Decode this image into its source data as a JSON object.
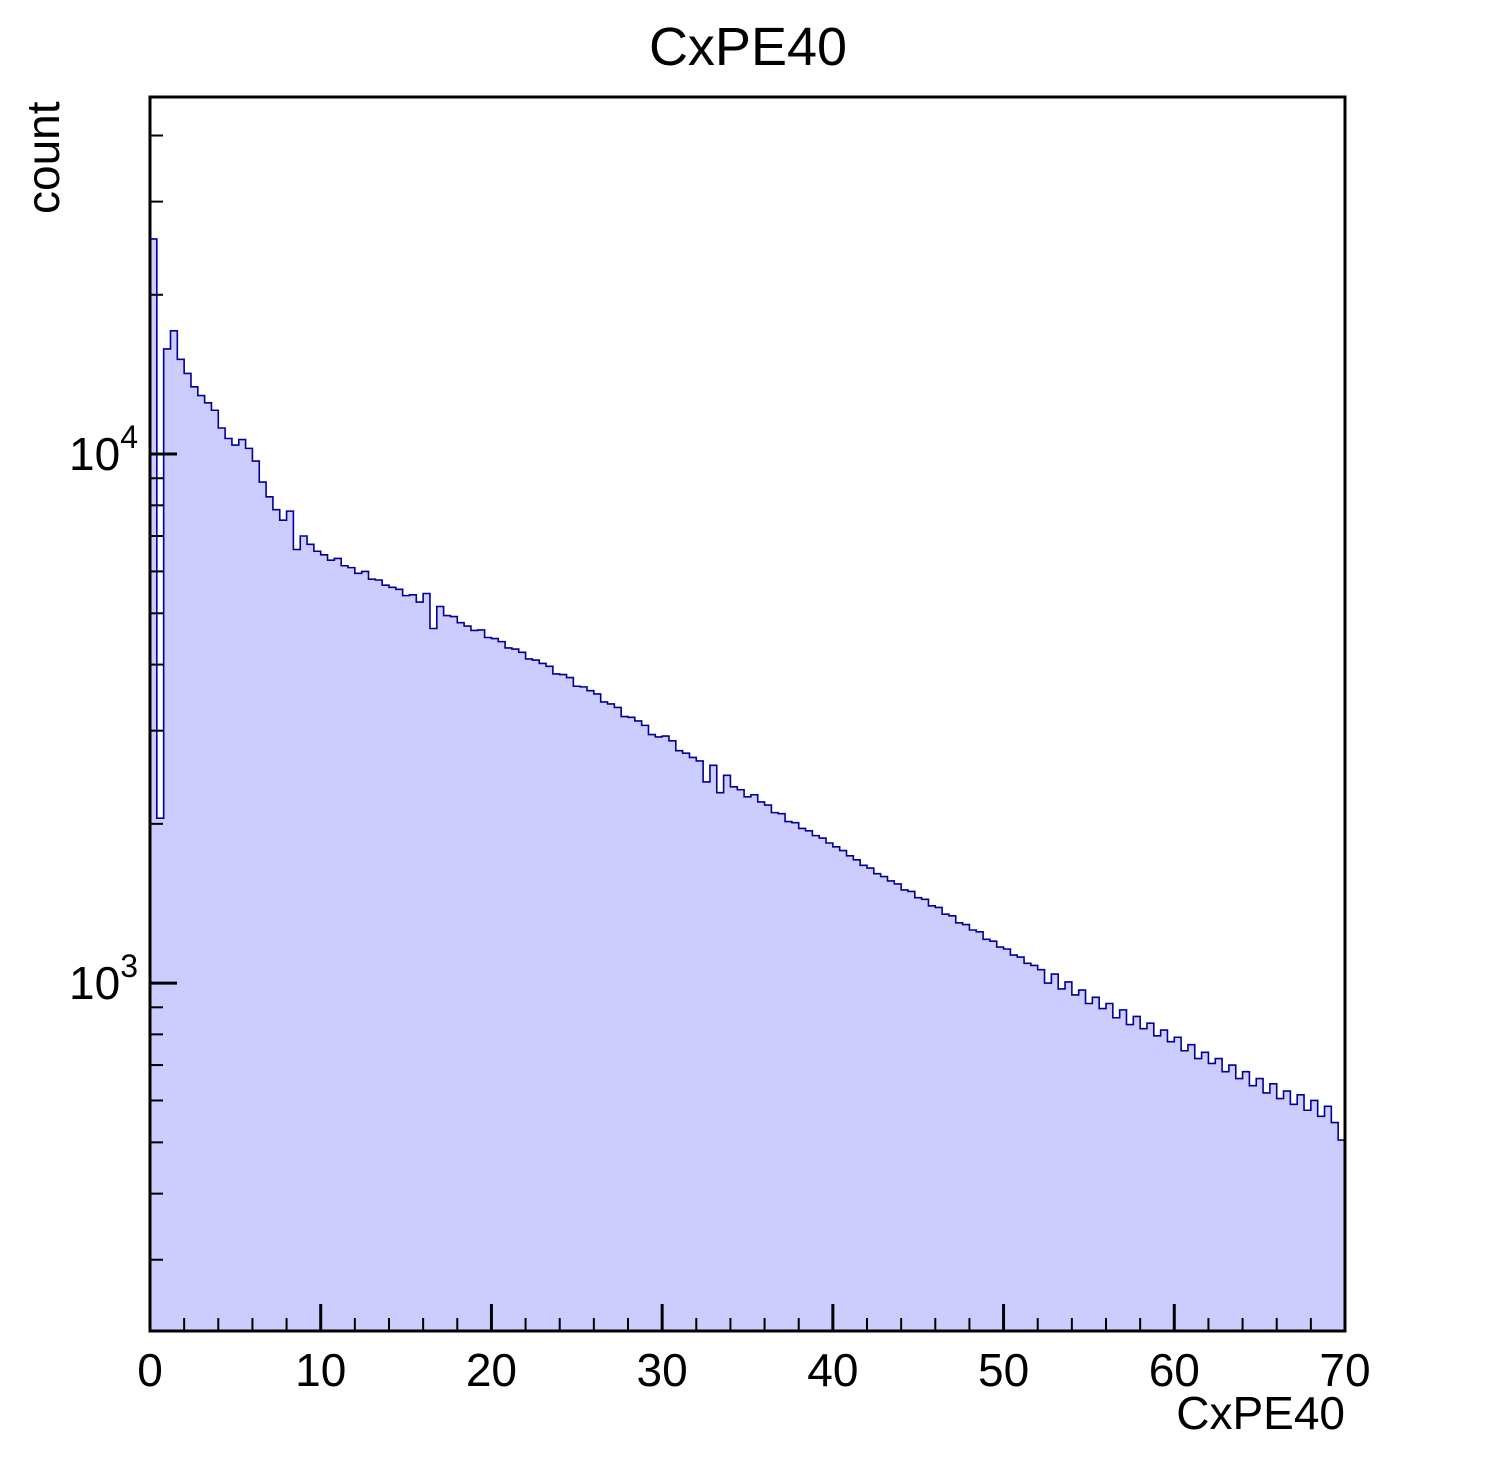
{
  "chart_data": {
    "type": "bar",
    "title": "CxPE40",
    "xlabel": "CxPE40",
    "ylabel": "count",
    "yscale": "log",
    "grid": false,
    "legend": "none",
    "xlim": [
      0,
      70
    ],
    "ylim": [
      220,
      47300
    ],
    "x_start": 0,
    "bin_width": 0.4,
    "x_minor_step": 2,
    "x_ticks": [
      {
        "value": 0,
        "label": "0"
      },
      {
        "value": 10,
        "label": "10"
      },
      {
        "value": 20,
        "label": "20"
      },
      {
        "value": 30,
        "label": "30"
      },
      {
        "value": 40,
        "label": "40"
      },
      {
        "value": 50,
        "label": "50"
      },
      {
        "value": 60,
        "label": "60"
      },
      {
        "value": 70,
        "label": "70"
      }
    ],
    "y_ticks": [
      {
        "value": 1000,
        "base": "10",
        "exp": "3"
      },
      {
        "value": 10000,
        "base": "10",
        "exp": "4"
      }
    ],
    "colors": {
      "fill": "#ccccff",
      "line": "#000099",
      "axis": "#000000",
      "text": "#000000",
      "background": "#ffffff"
    },
    "values": [
      25500,
      2050,
      15800,
      17100,
      15100,
      14200,
      13400,
      12900,
      12500,
      12100,
      11200,
      10700,
      10400,
      10650,
      10250,
      9700,
      8850,
      8300,
      7850,
      7500,
      7800,
      6600,
      7000,
      6750,
      6550,
      6450,
      6300,
      6350,
      6150,
      6100,
      5950,
      6000,
      5800,
      5780,
      5650,
      5600,
      5550,
      5400,
      5420,
      5250,
      5450,
      4680,
      5150,
      4950,
      4930,
      4800,
      4730,
      4640,
      4650,
      4500,
      4480,
      4420,
      4300,
      4280,
      4220,
      4100,
      4080,
      4020,
      3970,
      3840,
      3830,
      3780,
      3640,
      3630,
      3570,
      3520,
      3400,
      3370,
      3320,
      3190,
      3180,
      3130,
      3070,
      2950,
      2920,
      2930,
      2870,
      2750,
      2720,
      2670,
      2630,
      2400,
      2580,
      2290,
      2470,
      2350,
      2320,
      2250,
      2270,
      2200,
      2170,
      2100,
      2090,
      2020,
      2010,
      1960,
      1940,
      1900,
      1880,
      1840,
      1810,
      1780,
      1740,
      1710,
      1670,
      1650,
      1610,
      1590,
      1560,
      1540,
      1500,
      1490,
      1450,
      1440,
      1400,
      1390,
      1350,
      1340,
      1300,
      1290,
      1260,
      1250,
      1210,
      1200,
      1170,
      1160,
      1130,
      1120,
      1090,
      1080,
      1060,
      1000,
      1040,
      975,
      1005,
      950,
      970,
      915,
      940,
      895,
      915,
      860,
      890,
      835,
      865,
      820,
      840,
      795,
      815,
      775,
      790,
      745,
      765,
      720,
      740,
      705,
      720,
      680,
      700,
      660,
      680,
      640,
      660,
      620,
      645,
      605,
      625,
      590,
      615,
      575,
      600,
      560,
      585,
      545,
      505
    ]
  }
}
